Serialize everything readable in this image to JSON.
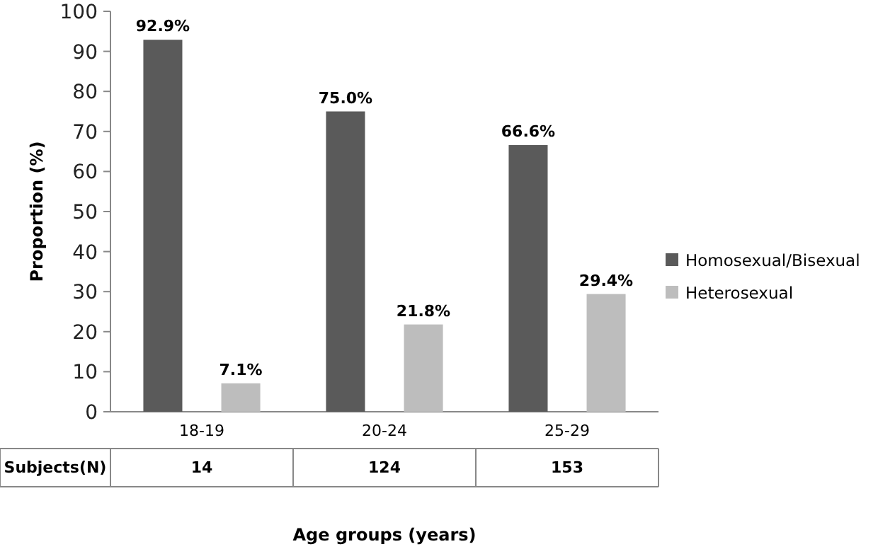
{
  "chart_data": {
    "type": "bar",
    "xlabel": "Age groups (years)",
    "ylabel": "Proportion (%)",
    "categories": [
      "18-19",
      "20-24",
      "25-29"
    ],
    "series": [
      {
        "name": "Homosexual/Bisexual",
        "color": "#5a5a5a",
        "values": [
          92.9,
          75.0,
          66.6
        ],
        "value_labels": [
          "92.9%",
          "75.0%",
          "66.6%"
        ]
      },
      {
        "name": "Heterosexual",
        "color": "#bdbdbd",
        "values": [
          7.1,
          21.8,
          29.4
        ],
        "value_labels": [
          "7.1%",
          "21.8%",
          "29.4%"
        ]
      }
    ],
    "ylim": [
      0,
      100
    ],
    "yticks": [
      0,
      10,
      20,
      30,
      40,
      50,
      60,
      70,
      80,
      90,
      100
    ],
    "grid": false,
    "legend": "right",
    "annotations": [
      "Subjects(N)",
      "14",
      "124",
      "153"
    ]
  }
}
